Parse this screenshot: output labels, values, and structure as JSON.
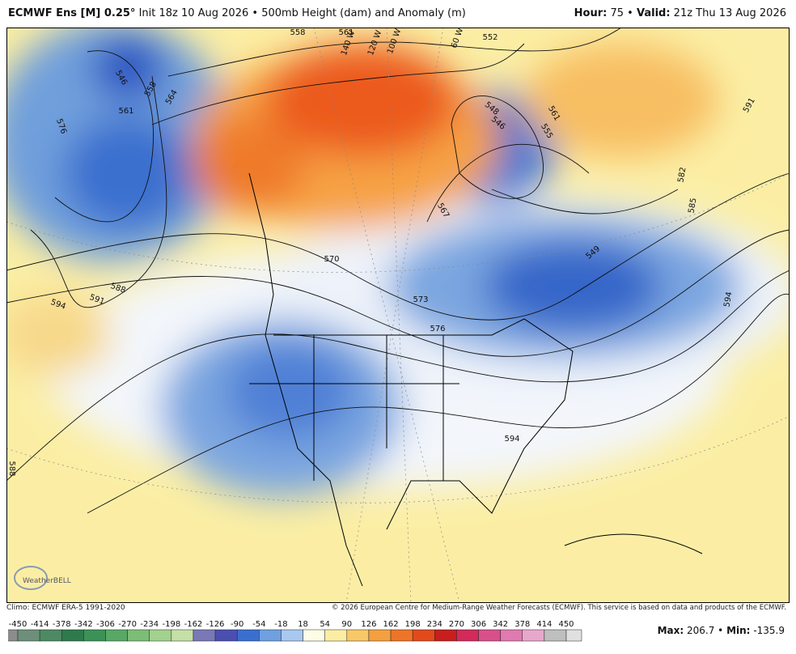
{
  "header": {
    "model": "ECMWF Ens [M] 0.25°",
    "init": "Init 18z 10 Aug 2026",
    "product": "500mb Height (dam) and Anomaly (m)",
    "hour_label": "Hour:",
    "hour": "75",
    "valid_label": "Valid:",
    "valid": "21z Thu 13 Aug 2026"
  },
  "map": {
    "contour_labels": [
      "558",
      "561",
      "552",
      "546",
      "558",
      "564",
      "561",
      "576",
      "548",
      "546",
      "561",
      "555",
      "591",
      "582",
      "585",
      "567",
      "570",
      "573",
      "576",
      "588",
      "591",
      "594",
      "594",
      "594",
      "588",
      "549"
    ],
    "longitude_labels": [
      "140 W",
      "120 W",
      "100 W",
      "60 W"
    ],
    "logo": "WeatherBELL"
  },
  "footer": {
    "climo": "Climo: ECMWF ERA-5 1991-2020",
    "copyright": "© 2026 European Centre for Medium-Range Weather Forecasts (ECMWF). This service is based on data and products of the ECMWF.",
    "colorbar_ticks": [
      -450,
      -414,
      -378,
      -342,
      -306,
      -270,
      -234,
      -198,
      -162,
      -126,
      -90,
      -54,
      -18,
      18,
      54,
      90,
      126,
      162,
      198,
      234,
      270,
      306,
      342,
      378,
      414,
      450
    ],
    "max_label": "Max:",
    "max": "206.7",
    "min_label": "Min:",
    "min": "-135.9"
  }
}
